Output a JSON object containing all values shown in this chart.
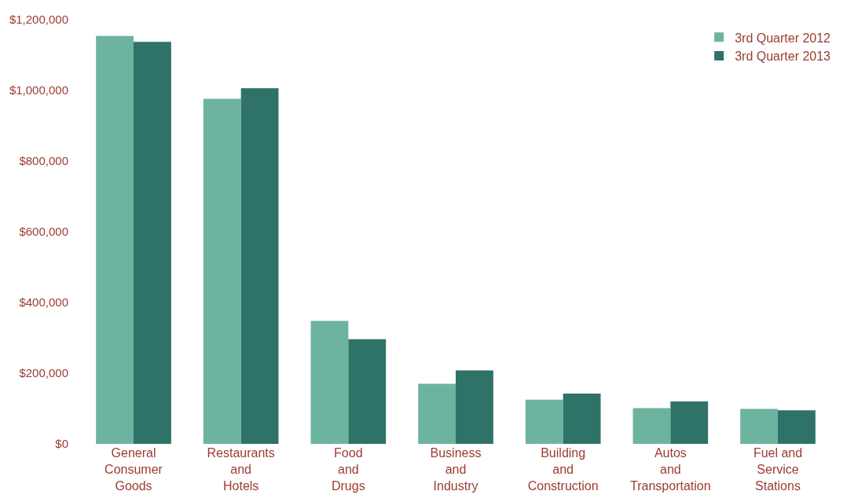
{
  "chart_data": {
    "type": "bar",
    "categories": [
      "General\nConsumer\nGoods",
      "Restaurants\nand\nHotels",
      "Food\nand\nDrugs",
      "Business\nand\nIndustry",
      "Building\nand\nConstruction",
      "Autos\nand\nTransportation",
      "Fuel and\nService\nStations"
    ],
    "series": [
      {
        "name": "3rd Quarter 2012",
        "color": "#6db4a0",
        "values": [
          1154000,
          976000,
          348000,
          170000,
          125000,
          101000,
          99000
        ]
      },
      {
        "name": "3rd Quarter 2013",
        "color": "#2f7268",
        "values": [
          1137000,
          1006000,
          296000,
          208000,
          142000,
          120000,
          95000
        ]
      }
    ],
    "ylim": [
      0,
      1200000
    ],
    "yticks": [
      {
        "value": 0,
        "label": "$0"
      },
      {
        "value": 200000,
        "label": "$200,000"
      },
      {
        "value": 400000,
        "label": "$400,000"
      },
      {
        "value": 600000,
        "label": "$600,000"
      },
      {
        "value": 800000,
        "label": "$800,000"
      },
      {
        "value": 1000000,
        "label": "$1,000,000"
      },
      {
        "value": 1200000,
        "label": "$1,200,000"
      }
    ],
    "legend": "top right"
  }
}
